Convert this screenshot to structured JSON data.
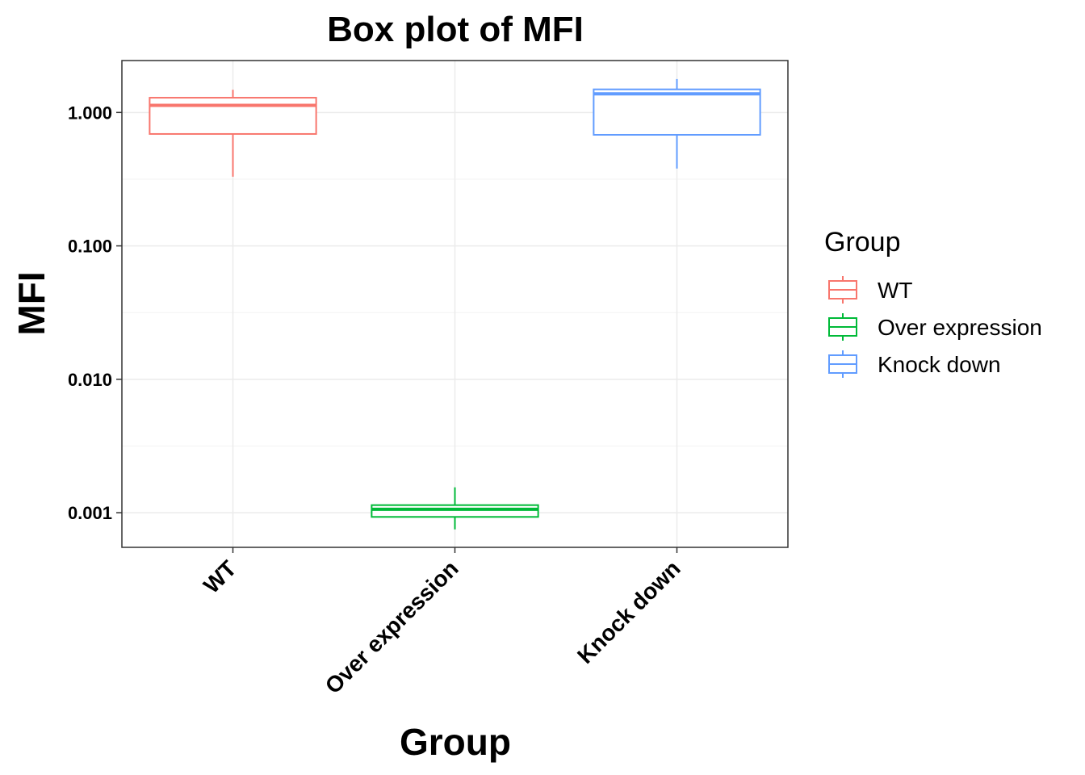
{
  "chart_data": {
    "type": "box",
    "title": "Box plot of MFI",
    "xlabel": "Group",
    "ylabel": "MFI",
    "yscale": "log10",
    "ylim": [
      0.00055,
      2.45
    ],
    "yticks": [
      0.001,
      0.01,
      0.1,
      1.0
    ],
    "ytick_labels": [
      "0.001",
      "0.010",
      "0.100",
      "1.000"
    ],
    "grid": true,
    "legend_title": "Group",
    "legend_position": "right",
    "categories": [
      "WT",
      "Over expression",
      "Knock down"
    ],
    "series": [
      {
        "name": "WT",
        "color": "#F8766D",
        "min": 0.33,
        "q1": 0.69,
        "median": 1.13,
        "q3": 1.29,
        "max": 1.48
      },
      {
        "name": "Over expression",
        "color": "#00BA38",
        "min": 0.00075,
        "q1": 0.00093,
        "median": 0.00106,
        "q3": 0.00114,
        "max": 0.00155
      },
      {
        "name": "Knock down",
        "color": "#619CFF",
        "min": 0.38,
        "q1": 0.68,
        "median": 1.38,
        "q3": 1.49,
        "max": 1.78
      }
    ]
  }
}
